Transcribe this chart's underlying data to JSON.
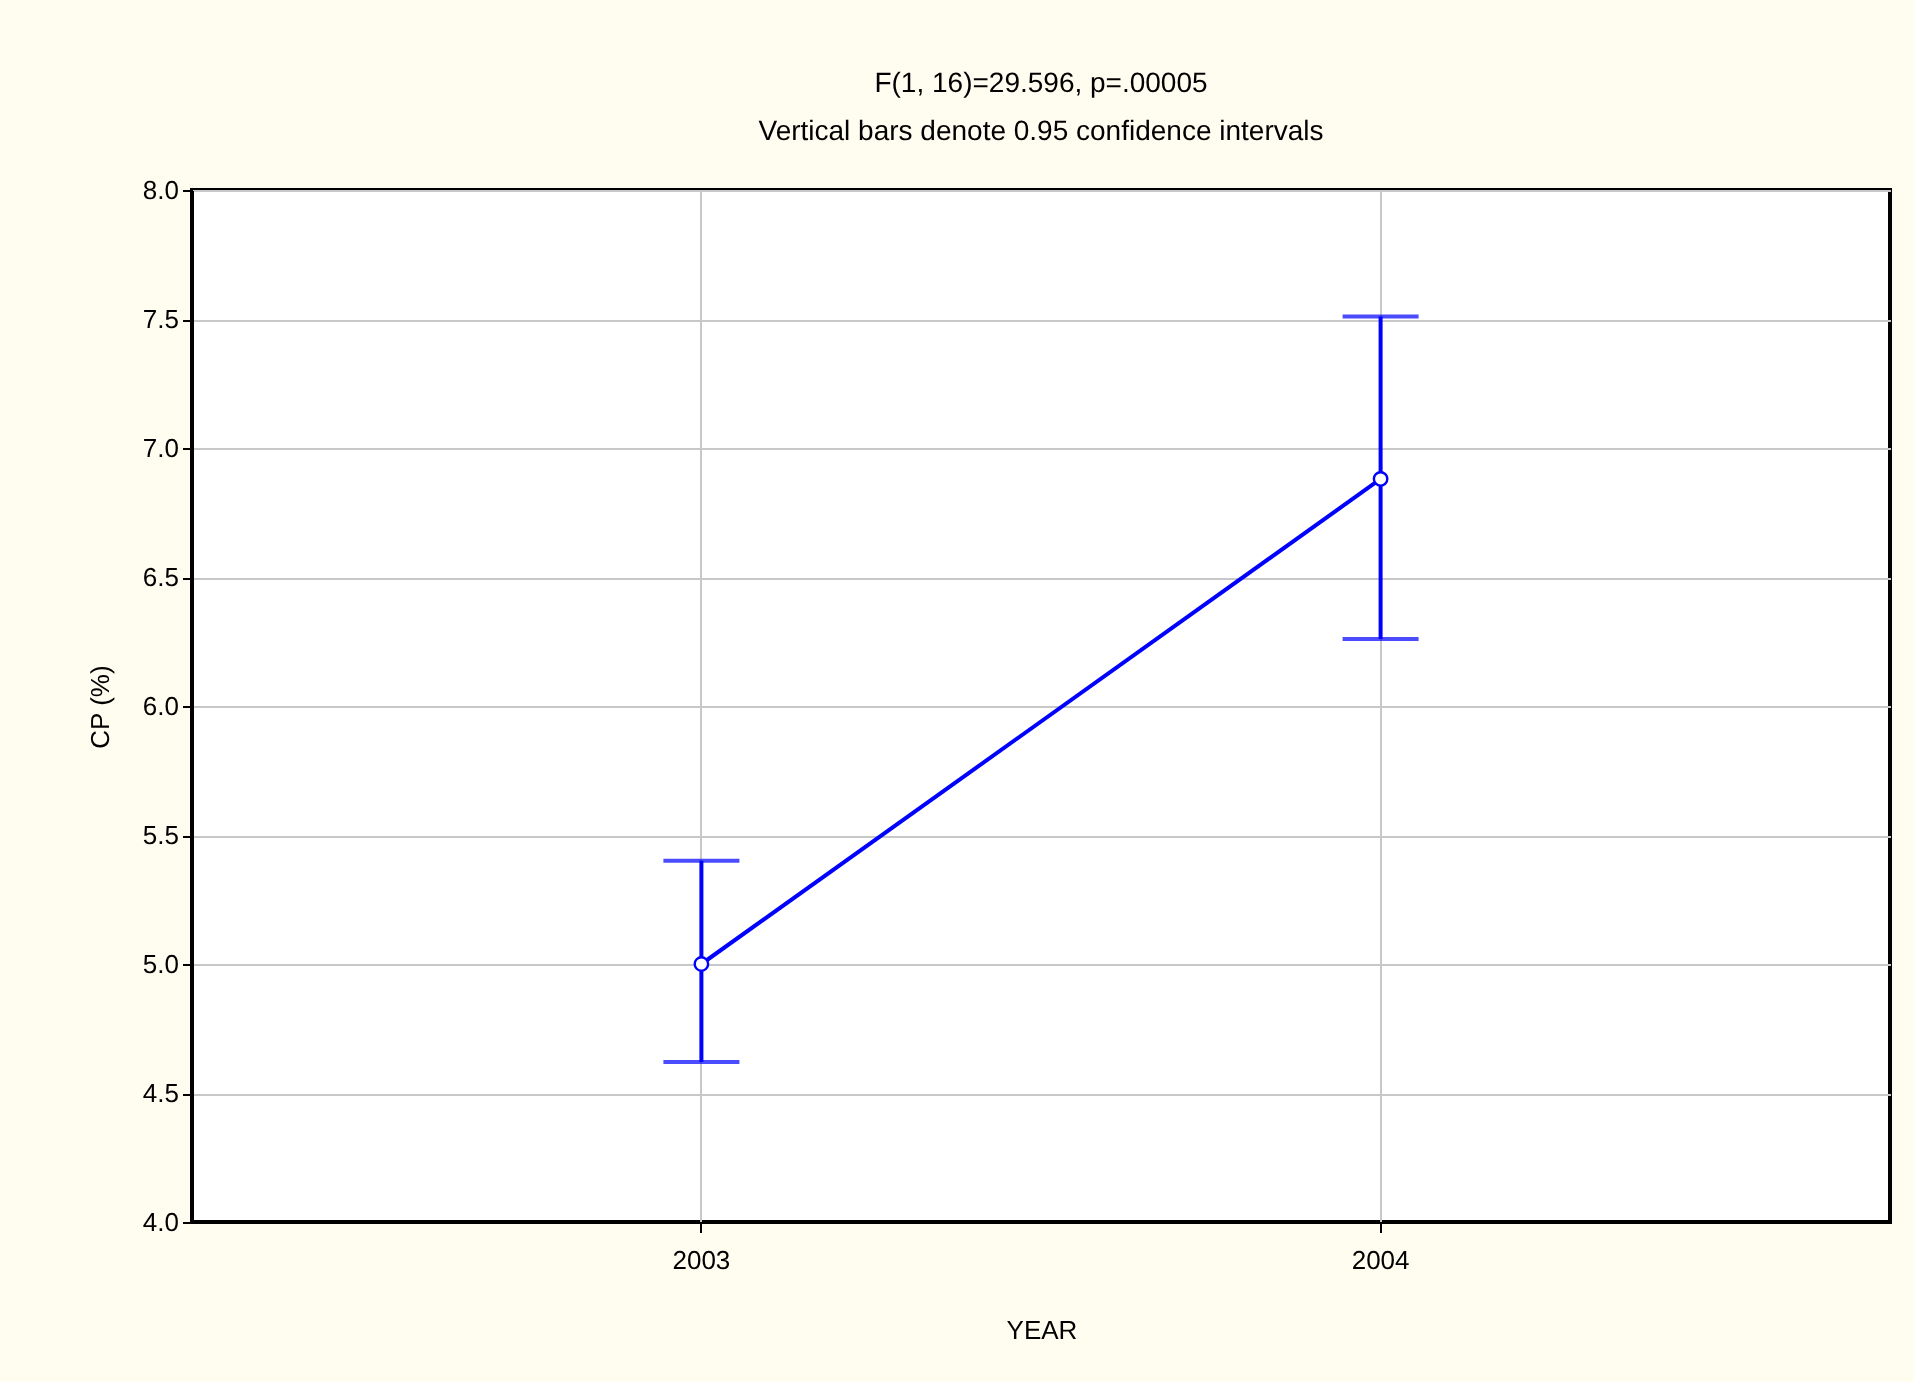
{
  "chart_data": {
    "type": "line",
    "title": "F(1, 16)=29.596, p=.00005",
    "subtitle": "Vertical bars denote 0.95 confidence intervals",
    "xlabel": "YEAR",
    "ylabel": "CP (%)",
    "categories": [
      "2003",
      "2004"
    ],
    "series": [
      {
        "color": "#0000ff",
        "values": [
          5.0,
          6.88
        ],
        "errors": [
          [
            4.62,
            5.4
          ],
          [
            6.26,
            7.51
          ]
        ]
      }
    ],
    "ylim": [
      4.0,
      8.0
    ],
    "yticks": [
      {
        "value": 4,
        "label": "4.0"
      },
      {
        "value": 4.5,
        "label": "4.5"
      },
      {
        "value": 5,
        "label": "5.0"
      },
      {
        "value": 5.5,
        "label": "5.5"
      },
      {
        "value": 6,
        "label": "6.0"
      },
      {
        "value": 6.5,
        "label": "6.5"
      },
      {
        "value": 7,
        "label": "7.0"
      },
      {
        "value": 7.5,
        "label": "7.5"
      },
      {
        "value": 8,
        "label": "8.0"
      }
    ],
    "grid": true,
    "marker": "circle",
    "line_style": "solid"
  }
}
